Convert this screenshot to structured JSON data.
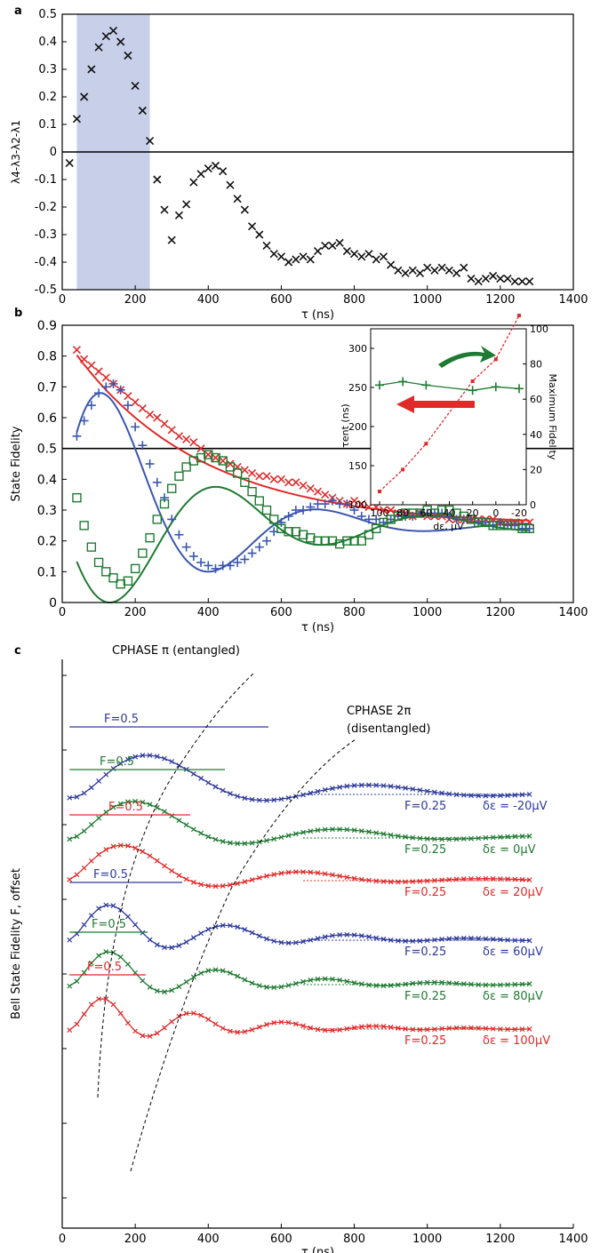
{
  "chart_data": [
    {
      "panel": "a",
      "type": "scatter",
      "xlabel": "τ (ns)",
      "ylabel": "λ4-λ3-λ2-λ1",
      "xlim": [
        0,
        1400
      ],
      "ylim": [
        -0.5,
        0.5
      ],
      "xticks": [
        0,
        200,
        400,
        600,
        800,
        1000,
        1200,
        1400
      ],
      "yticks": [
        -0.5,
        -0.4,
        -0.3,
        -0.2,
        -0.1,
        0,
        0.1,
        0.2,
        0.3,
        0.4,
        0.5
      ],
      "ytick_labels": [
        "-0.5",
        "-0.4",
        "-0.3",
        "-0.2",
        "-0.1",
        "0",
        "0.1",
        "0.2",
        "0.3",
        "0.4",
        "0.5"
      ],
      "shaded_region": [
        40,
        240
      ],
      "shade_color": "#c8cfe9",
      "zero_line": 0,
      "series": [
        {
          "color": "#111111",
          "marker": "x",
          "x": [
            20,
            40,
            60,
            80,
            100,
            120,
            140,
            160,
            180,
            200,
            220,
            240,
            260,
            280,
            300,
            320,
            340,
            360,
            380,
            400,
            420,
            440,
            460,
            480,
            500,
            520,
            540,
            560,
            580,
            600,
            620,
            640,
            660,
            680,
            700,
            720,
            740,
            760,
            780,
            800,
            820,
            840,
            860,
            880,
            900,
            920,
            940,
            960,
            980,
            1000,
            1020,
            1040,
            1060,
            1080,
            1100,
            1120,
            1140,
            1160,
            1180,
            1200,
            1220,
            1240,
            1260,
            1280
          ],
          "y": [
            -0.04,
            0.12,
            0.2,
            0.3,
            0.38,
            0.42,
            0.44,
            0.4,
            0.35,
            0.24,
            0.15,
            0.04,
            -0.1,
            -0.21,
            -0.32,
            -0.23,
            -0.19,
            -0.11,
            -0.08,
            -0.06,
            -0.05,
            -0.07,
            -0.12,
            -0.17,
            -0.21,
            -0.27,
            -0.3,
            -0.34,
            -0.37,
            -0.38,
            -0.4,
            -0.39,
            -0.38,
            -0.39,
            -0.36,
            -0.34,
            -0.34,
            -0.33,
            -0.36,
            -0.37,
            -0.38,
            -0.37,
            -0.39,
            -0.38,
            -0.41,
            -0.43,
            -0.44,
            -0.43,
            -0.44,
            -0.42,
            -0.43,
            -0.42,
            -0.43,
            -0.44,
            -0.42,
            -0.46,
            -0.47,
            -0.46,
            -0.45,
            -0.46,
            -0.46,
            -0.47,
            -0.47,
            -0.47
          ]
        }
      ]
    },
    {
      "panel": "b",
      "type": "scatter",
      "xlabel": "τ (ns)",
      "ylabel": "State Fidelity",
      "xlim": [
        0,
        1400
      ],
      "ylim": [
        0,
        0.9
      ],
      "xticks": [
        0,
        200,
        400,
        600,
        800,
        1000,
        1200,
        1400
      ],
      "yticks": [
        0,
        0.1,
        0.2,
        0.3,
        0.4,
        0.5,
        0.6,
        0.7,
        0.8,
        0.9
      ],
      "ytick_labels": [
        "0",
        "0.1",
        "0.2",
        "0.3",
        "0.4",
        "0.5",
        "0.6",
        "0.7",
        "0.8",
        "0.9"
      ],
      "hline": 0.5,
      "series": [
        {
          "color": "#e02a2a",
          "marker": "x",
          "x": [
            40,
            60,
            80,
            100,
            120,
            140,
            160,
            180,
            200,
            220,
            240,
            260,
            280,
            300,
            320,
            340,
            360,
            380,
            400,
            420,
            440,
            460,
            480,
            500,
            520,
            540,
            560,
            580,
            600,
            620,
            640,
            660,
            680,
            700,
            720,
            740,
            760,
            780,
            800,
            820,
            840,
            860,
            880,
            900,
            920,
            940,
            960,
            980,
            1000,
            1020,
            1040,
            1060,
            1080,
            1100,
            1120,
            1140,
            1160,
            1180,
            1200,
            1220,
            1240,
            1260,
            1280
          ],
          "y": [
            0.82,
            0.79,
            0.77,
            0.75,
            0.73,
            0.71,
            0.69,
            0.67,
            0.65,
            0.63,
            0.61,
            0.6,
            0.58,
            0.56,
            0.54,
            0.53,
            0.52,
            0.5,
            0.48,
            0.47,
            0.46,
            0.45,
            0.44,
            0.43,
            0.42,
            0.41,
            0.41,
            0.4,
            0.4,
            0.39,
            0.39,
            0.38,
            0.37,
            0.36,
            0.35,
            0.34,
            0.33,
            0.32,
            0.33,
            0.32,
            0.31,
            0.31,
            0.3,
            0.3,
            0.29,
            0.29,
            0.28,
            0.29,
            0.28,
            0.28,
            0.28,
            0.27,
            0.27,
            0.27,
            0.27,
            0.27,
            0.27,
            0.27,
            0.26,
            0.26,
            0.26,
            0.26,
            0.26
          ]
        },
        {
          "color": "#3a56b0",
          "marker": "+",
          "x": [
            40,
            60,
            80,
            100,
            120,
            140,
            160,
            180,
            200,
            220,
            240,
            260,
            280,
            300,
            320,
            340,
            360,
            380,
            400,
            420,
            440,
            460,
            480,
            500,
            520,
            540,
            560,
            580,
            600,
            620,
            640,
            660,
            680,
            700,
            720,
            740,
            760,
            780,
            800,
            820,
            840,
            860,
            880,
            900,
            920,
            940,
            960,
            980,
            1000,
            1020,
            1040,
            1060,
            1080,
            1100,
            1120,
            1140,
            1160,
            1180,
            1200,
            1220,
            1240,
            1260,
            1280
          ],
          "y": [
            0.54,
            0.59,
            0.64,
            0.68,
            0.7,
            0.71,
            0.69,
            0.64,
            0.57,
            0.51,
            0.45,
            0.39,
            0.34,
            0.27,
            0.22,
            0.18,
            0.15,
            0.13,
            0.12,
            0.11,
            0.12,
            0.12,
            0.13,
            0.14,
            0.16,
            0.18,
            0.2,
            0.23,
            0.26,
            0.28,
            0.3,
            0.3,
            0.31,
            0.32,
            0.32,
            0.33,
            0.32,
            0.32,
            0.3,
            0.28,
            0.27,
            0.27,
            0.26,
            0.27,
            0.28,
            0.28,
            0.28,
            0.29,
            0.29,
            0.29,
            0.29,
            0.28,
            0.27,
            0.27,
            0.27,
            0.26,
            0.26,
            0.25,
            0.26,
            0.25,
            0.25,
            0.24,
            0.24
          ]
        },
        {
          "color": "#1f7a32",
          "marker": "square",
          "x": [
            40,
            60,
            80,
            100,
            120,
            140,
            160,
            180,
            200,
            220,
            240,
            260,
            280,
            300,
            320,
            340,
            360,
            380,
            400,
            420,
            440,
            460,
            480,
            500,
            520,
            540,
            560,
            580,
            600,
            620,
            640,
            660,
            680,
            700,
            720,
            740,
            760,
            780,
            800,
            820,
            840,
            860,
            880,
            900,
            920,
            940,
            960,
            980,
            1000,
            1020,
            1040,
            1060,
            1080,
            1100,
            1120,
            1140,
            1160,
            1180,
            1200,
            1220,
            1240,
            1260,
            1280
          ],
          "y": [
            0.34,
            0.25,
            0.18,
            0.13,
            0.1,
            0.08,
            0.06,
            0.07,
            0.11,
            0.16,
            0.21,
            0.27,
            0.32,
            0.37,
            0.41,
            0.44,
            0.46,
            0.47,
            0.48,
            0.47,
            0.46,
            0.44,
            0.42,
            0.39,
            0.36,
            0.33,
            0.3,
            0.27,
            0.24,
            0.23,
            0.23,
            0.22,
            0.21,
            0.2,
            0.2,
            0.2,
            0.19,
            0.2,
            0.2,
            0.2,
            0.22,
            0.24,
            0.26,
            0.27,
            0.28,
            0.29,
            0.29,
            0.29,
            0.3,
            0.29,
            0.3,
            0.3,
            0.29,
            0.28,
            0.27,
            0.26,
            0.26,
            0.25,
            0.25,
            0.25,
            0.25,
            0.24,
            0.24
          ]
        }
      ],
      "fits": [
        {
          "color": "#e02a2a",
          "model": "exp",
          "offset": 0.25,
          "amp": 0.62,
          "tau": 350
        },
        {
          "color": "#3a56b0",
          "model": "damped_cos",
          "offset": 0.25,
          "amp": 0.55,
          "tau": 280,
          "period": 590,
          "t0": 135
        },
        {
          "color": "#1f7a32",
          "model": "damped_cos",
          "offset": 0.25,
          "amp": -0.33,
          "tau": 420,
          "period": 580,
          "t0": 150
        }
      ],
      "inset": {
        "xlabel": "dε, μV",
        "ylabel_left": "τent (ns)",
        "ylabel_right": "Maximum Fidelity",
        "xlim": [
          100,
          -20
        ],
        "xticks": [
          100,
          80,
          60,
          40,
          20,
          0,
          -20
        ],
        "ylim_left": [
          100,
          300
        ],
        "yticks_left": [
          100,
          150,
          200,
          250,
          300
        ],
        "ylim_right": [
          0,
          100
        ],
        "yticks_right": [
          0,
          20,
          40,
          60,
          80,
          100
        ],
        "tau_series": {
          "color": "#e02a2a",
          "x": [
            100,
            80,
            60,
            20,
            0,
            -20
          ],
          "y": [
            117,
            145,
            178,
            258,
            286,
            342
          ]
        },
        "fidelity_series": {
          "color": "#1f7a32",
          "x": [
            100,
            80,
            60,
            20,
            0,
            -20
          ],
          "y": [
            68,
            70,
            68,
            65,
            67,
            66
          ]
        }
      }
    },
    {
      "panel": "c",
      "type": "line",
      "xlabel": "τ (ns)",
      "ylabel": "Bell State Fidelity F, offset",
      "xlim": [
        0,
        1400
      ],
      "xticks": [
        0,
        200,
        400,
        600,
        800,
        1000,
        1200,
        1400
      ],
      "annotations": [
        "CPHASE π (entangled)",
        "CPHASE 2π",
        "(disentangled)"
      ],
      "traces": [
        {
          "color": "#2e3a9b",
          "F_half": "F=0.5",
          "F_quarter": "F=0.25",
          "detuning": "δε = -20μV",
          "t0": 260,
          "period": 610,
          "damp": 420
        },
        {
          "color": "#1f7a32",
          "F_half": "F=0.5",
          "F_quarter": "F=0.25",
          "detuning": "δε = 0μV",
          "t0": 220,
          "period": 560,
          "damp": 380
        },
        {
          "color": "#e02a2a",
          "F_half": "F=0.5",
          "F_quarter": "F=0.25",
          "detuning": "δε = 20μV",
          "t0": 180,
          "period": 500,
          "damp": 340
        },
        {
          "color": "#2e3a9b",
          "F_half": "F=0.5",
          "F_quarter": "F=0.25",
          "detuning": "δε = 60μV",
          "t0": 130,
          "period": 330,
          "damp": 330
        },
        {
          "color": "#1f7a32",
          "F_half": "F=0.5",
          "F_quarter": "F=0.25",
          "detuning": "δε = 80μV",
          "t0": 130,
          "period": 300,
          "damp": 320
        },
        {
          "color": "#e02a2a",
          "F_half": "F=0.5",
          "F_quarter": "F=0.25",
          "detuning": "δε = 100μV",
          "t0": 110,
          "period": 250,
          "damp": 300
        }
      ]
    }
  ]
}
